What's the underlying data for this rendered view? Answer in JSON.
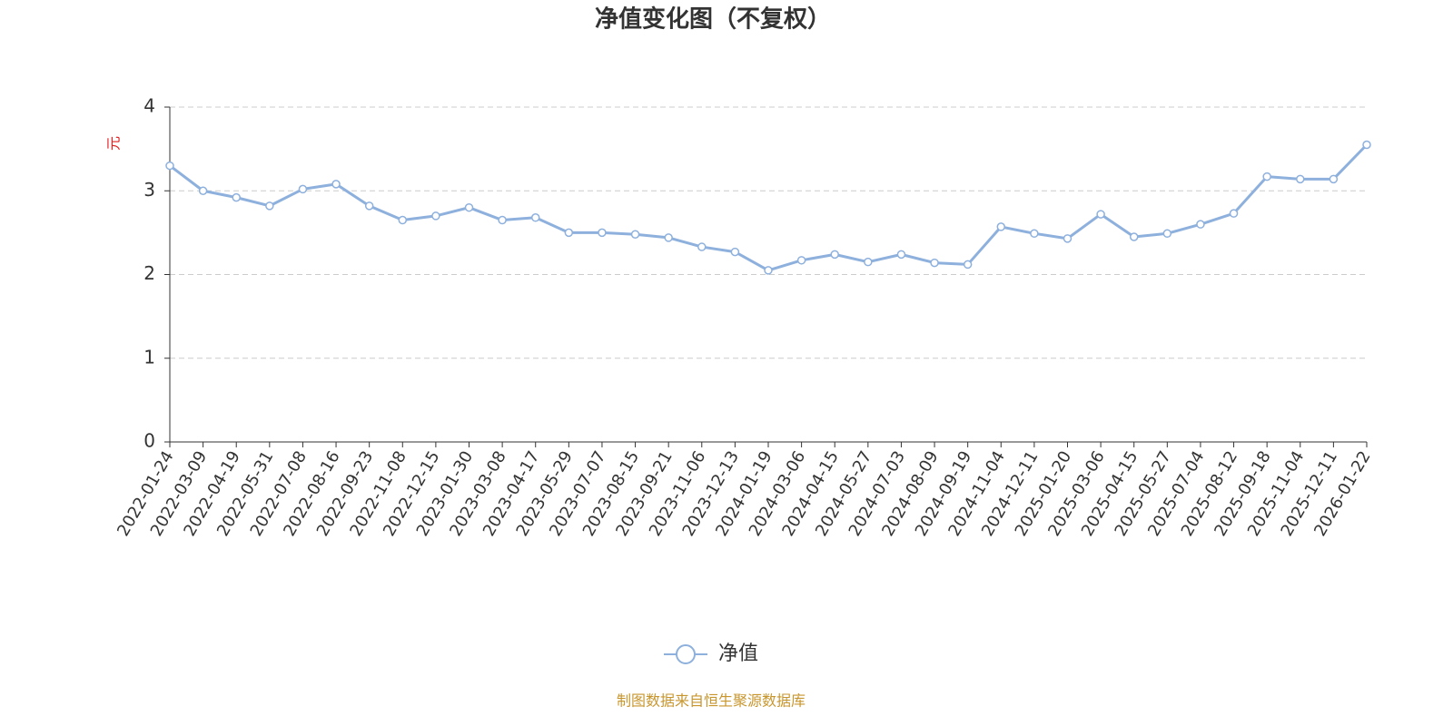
{
  "chart_data": {
    "type": "line",
    "title": "净值变化图（不复权）",
    "y_label": "元",
    "categories": [
      "2022-01-24",
      "2022-03-09",
      "2022-04-19",
      "2022-05-31",
      "2022-07-08",
      "2022-08-16",
      "2022-09-23",
      "2022-11-08",
      "2022-12-15",
      "2023-01-30",
      "2023-03-08",
      "2023-04-17",
      "2023-05-29",
      "2023-07-07",
      "2023-08-15",
      "2023-09-21",
      "2023-11-06",
      "2023-12-13",
      "2024-01-19",
      "2024-03-06",
      "2024-04-15",
      "2024-05-27",
      "2024-07-03",
      "2024-08-09",
      "2024-09-19",
      "2024-11-04",
      "2024-12-11",
      "2025-01-20",
      "2025-03-06",
      "2025-04-15",
      "2025-05-27",
      "2025-07-04",
      "2025-08-12",
      "2025-09-18",
      "2025-11-04",
      "2025-12-11",
      "2026-01-22"
    ],
    "series": [
      {
        "name": "净值",
        "color": "#8eb0dd",
        "values": [
          3.3,
          3.0,
          2.92,
          2.82,
          3.02,
          3.08,
          2.82,
          2.65,
          2.7,
          2.8,
          2.65,
          2.68,
          2.5,
          2.5,
          2.48,
          2.44,
          2.33,
          2.27,
          2.05,
          2.17,
          2.24,
          2.15,
          2.24,
          2.14,
          2.12,
          2.57,
          2.49,
          2.43,
          2.72,
          2.45,
          2.49,
          2.6,
          2.73,
          3.17,
          3.14,
          3.14,
          3.55
        ]
      }
    ],
    "ylim": [
      0,
      4
    ],
    "yticks": [
      0,
      1,
      2,
      3,
      4
    ],
    "grid": true,
    "footer": "制图数据来自恒生聚源数据库"
  }
}
